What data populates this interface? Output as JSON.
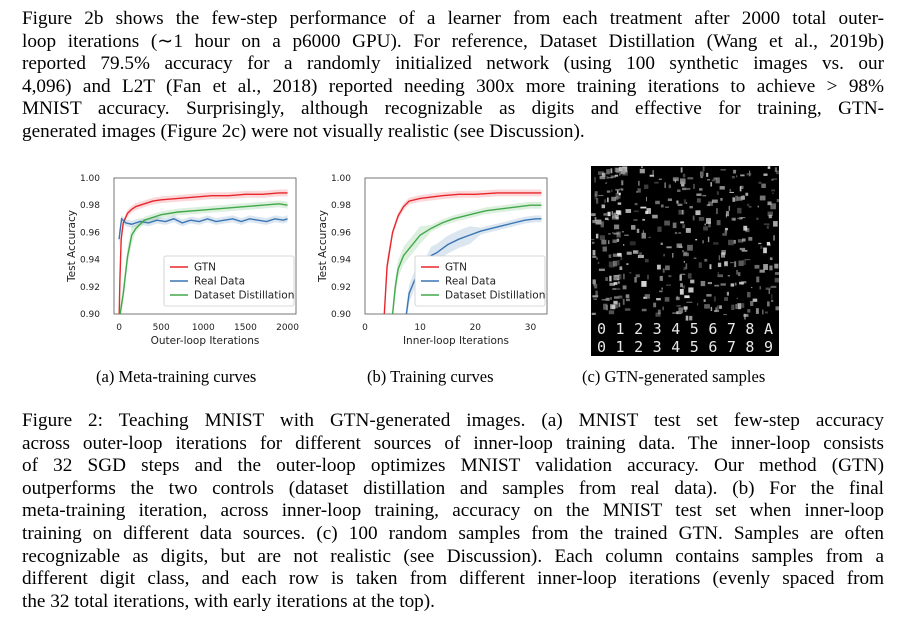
{
  "top_paragraph": [
    "Figure 2b shows the few-step performance of a learner from each treatment after 2000 total outer-",
    "loop iterations (∼1 hour on a p6000 GPU). For reference, Dataset Distillation (Wang et al., 2019b)",
    "reported 79.5% accuracy for a randomly initialized network (using 100 synthetic images vs. our",
    "4,096) and L2T (Fan et al., 2018) reported needing 300x more training iterations to achieve > 98%",
    "MNIST accuracy. Surprisingly, although recognizable as digits and effective for training, GTN-",
    "generated images (Figure 2c) were not visually realistic (see Discussion)."
  ],
  "subcaptions": {
    "a": "(a) Meta-training curves",
    "b": "(b) Training curves",
    "c": "(c) GTN-generated samples"
  },
  "caption": [
    "Figure 2: Teaching MNIST with GTN-generated images. (a) MNIST test set few-step accuracy",
    "across outer-loop iterations for different sources of inner-loop training data. The inner-loop consists",
    "of 32 SGD steps and the outer-loop optimizes MNIST validation accuracy. Our method (GTN)",
    "outperforms the two controls (dataset distillation and samples from real data). (b) For the final",
    "meta-training iteration, across inner-loop training, accuracy on the MNIST test set when inner-loop",
    "training on different data sources. (c) 100 random samples from the trained GTN. Samples are often",
    "recognizable as digits, but are not realistic (see Discussion). Each column contains samples from a",
    "different digit class, and each row is taken from different inner-loop iterations (evenly spaced from",
    "the 32 total iterations, with early iterations at the top)."
  ],
  "samples_bottom_rows": [
    "0 1 2 3 4 5 6 7 8 A",
    "0 1 2 3 4 5 6 7 8 9"
  ],
  "chart_data": [
    {
      "type": "line",
      "title": "",
      "xlabel": "Outer-loop Iterations",
      "ylabel": "Test Accuracy",
      "xlim": [
        -60,
        2100
      ],
      "ylim": [
        0.9,
        1.0
      ],
      "x_ticks": [
        "0",
        "500",
        "1000",
        "1500",
        "2000"
      ],
      "x_tick_values": [
        0,
        500,
        1000,
        1500,
        2000
      ],
      "y_ticks": [
        "0.90",
        "0.92",
        "0.94",
        "0.96",
        "0.98",
        "1.00"
      ],
      "y_tick_values": [
        0.9,
        0.92,
        0.94,
        0.96,
        0.98,
        1.0
      ],
      "legend_position": "lower-right",
      "series": [
        {
          "name": "GTN",
          "color": "#e8262b",
          "x": [
            0,
            10,
            25,
            50,
            100,
            150,
            200,
            300,
            400,
            500,
            700,
            900,
            1100,
            1300,
            1500,
            1700,
            1900,
            2000
          ],
          "y": [
            0.895,
            0.925,
            0.955,
            0.967,
            0.974,
            0.977,
            0.979,
            0.981,
            0.983,
            0.984,
            0.985,
            0.986,
            0.987,
            0.987,
            0.988,
            0.988,
            0.989,
            0.989
          ]
        },
        {
          "name": "Real Data",
          "color": "#3a75b4",
          "x": [
            0,
            30,
            80,
            150,
            250,
            350,
            450,
            550,
            650,
            750,
            850,
            950,
            1050,
            1150,
            1250,
            1350,
            1450,
            1550,
            1650,
            1750,
            1850,
            1950,
            2000
          ],
          "y": [
            0.955,
            0.97,
            0.967,
            0.966,
            0.968,
            0.967,
            0.969,
            0.968,
            0.97,
            0.967,
            0.969,
            0.968,
            0.97,
            0.968,
            0.969,
            0.97,
            0.968,
            0.97,
            0.969,
            0.968,
            0.97,
            0.969,
            0.97
          ]
        },
        {
          "name": "Dataset Distillation",
          "color": "#42a94a",
          "x": [
            0,
            50,
            100,
            150,
            200,
            300,
            400,
            500,
            700,
            900,
            1100,
            1300,
            1500,
            1700,
            1900,
            2000
          ],
          "y": [
            0.895,
            0.915,
            0.942,
            0.958,
            0.963,
            0.969,
            0.971,
            0.973,
            0.975,
            0.976,
            0.977,
            0.978,
            0.979,
            0.98,
            0.981,
            0.98
          ]
        }
      ]
    },
    {
      "type": "line",
      "title": "",
      "xlabel": "Inner-loop Iterations",
      "ylabel": "Test Accuracy",
      "xlim": [
        0,
        33
      ],
      "ylim": [
        0.9,
        1.0
      ],
      "x_ticks": [
        "0",
        "10",
        "20",
        "30"
      ],
      "x_tick_values": [
        0,
        10,
        20,
        30
      ],
      "y_ticks": [
        "0.90",
        "0.92",
        "0.94",
        "0.96",
        "0.98",
        "1.00"
      ],
      "y_tick_values": [
        0.9,
        0.92,
        0.94,
        0.96,
        0.98,
        1.0
      ],
      "legend_position": "lower-right",
      "series": [
        {
          "name": "GTN",
          "color": "#e8262b",
          "x": [
            3.5,
            4,
            5,
            6,
            7,
            8,
            10,
            12,
            14,
            17,
            20,
            24,
            28,
            32
          ],
          "y": [
            0.9,
            0.935,
            0.96,
            0.972,
            0.979,
            0.983,
            0.985,
            0.986,
            0.987,
            0.988,
            0.988,
            0.989,
            0.989,
            0.989
          ]
        },
        {
          "name": "Real Data",
          "color": "#3a75b4",
          "x": [
            7.5,
            8,
            9,
            10,
            11,
            12,
            13,
            14,
            15,
            17,
            19,
            21,
            23,
            25,
            27,
            29,
            31,
            32
          ],
          "y": [
            0.9,
            0.915,
            0.925,
            0.932,
            0.935,
            0.943,
            0.945,
            0.948,
            0.951,
            0.955,
            0.958,
            0.961,
            0.963,
            0.965,
            0.967,
            0.969,
            0.97,
            0.97
          ]
        },
        {
          "name": "Dataset Distillation",
          "color": "#42a94a",
          "x": [
            5,
            5.5,
            6,
            7,
            8,
            9,
            10,
            12,
            14,
            16,
            18,
            20,
            22,
            24,
            26,
            28,
            30,
            32
          ],
          "y": [
            0.9,
            0.92,
            0.933,
            0.943,
            0.948,
            0.953,
            0.958,
            0.963,
            0.967,
            0.97,
            0.972,
            0.974,
            0.976,
            0.977,
            0.978,
            0.979,
            0.98,
            0.98
          ]
        }
      ]
    }
  ]
}
